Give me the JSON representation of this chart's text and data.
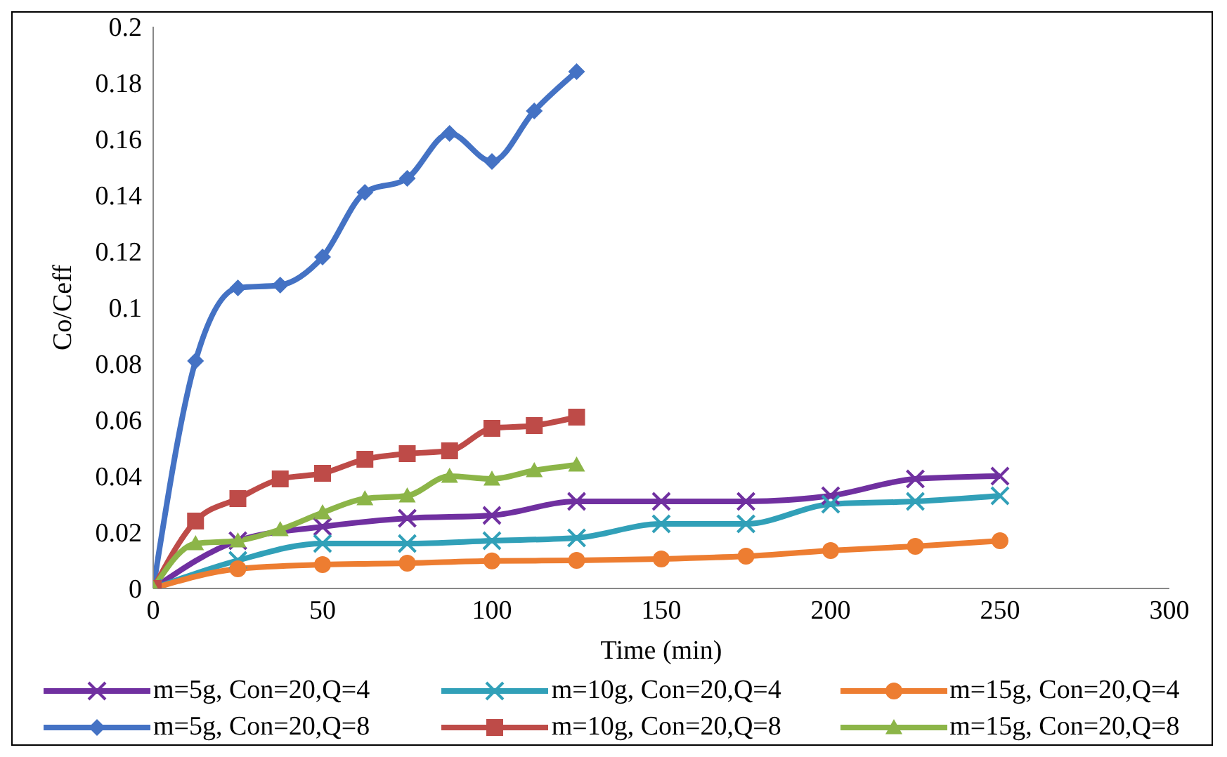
{
  "chart_data": {
    "type": "line",
    "xlabel": "Time (min)",
    "ylabel": "Co/Ceff",
    "xlim": [
      0,
      300
    ],
    "xticks": [
      0,
      50,
      100,
      150,
      200,
      250,
      300
    ],
    "ylim": [
      0,
      0.2
    ],
    "yticks": [
      0,
      0.02,
      0.04,
      0.06,
      0.08,
      0.1,
      0.12,
      0.14,
      0.16,
      0.18,
      0.2
    ],
    "grid": false,
    "legend": "bottom",
    "line_style": "solid",
    "series": [
      {
        "name": "m=5g, Con=20,Q=4",
        "color": "#7030a0",
        "marker": "cross",
        "x": [
          0,
          25,
          50,
          75,
          100,
          125,
          150,
          175,
          200,
          225,
          250
        ],
        "values": [
          0,
          0.017,
          0.022,
          0.025,
          0.026,
          0.031,
          0.031,
          0.031,
          0.033,
          0.039,
          0.04
        ]
      },
      {
        "name": "m=10g, Con=20,Q=4",
        "color": "#31a0b8",
        "marker": "cross",
        "x": [
          0,
          25,
          50,
          75,
          100,
          125,
          150,
          175,
          200,
          225,
          250
        ],
        "values": [
          0,
          0.01,
          0.016,
          0.016,
          0.017,
          0.018,
          0.023,
          0.023,
          0.03,
          0.031,
          0.033
        ]
      },
      {
        "name": "m=15g, Con=20,Q=4",
        "color": "#ed7d31",
        "marker": "circle",
        "x": [
          0,
          25,
          50,
          75,
          100,
          125,
          150,
          175,
          200,
          225,
          250
        ],
        "values": [
          0,
          0.007,
          0.0085,
          0.009,
          0.0098,
          0.01,
          0.0105,
          0.0115,
          0.0135,
          0.015,
          0.017
        ]
      },
      {
        "name": "m=5g, Con=20,Q=8",
        "color": "#4472c4",
        "marker": "diamond",
        "x": [
          0,
          12.5,
          25,
          37.5,
          50,
          62.5,
          75,
          87.5,
          100,
          112.5,
          125
        ],
        "values": [
          0,
          0.081,
          0.107,
          0.108,
          0.118,
          0.141,
          0.146,
          0.162,
          0.152,
          0.17,
          0.184
        ]
      },
      {
        "name": "m=10g, Con=20,Q=8",
        "color": "#be4b48",
        "marker": "square",
        "x": [
          0,
          12.5,
          25,
          37.5,
          50,
          62.5,
          75,
          87.5,
          100,
          112.5,
          125
        ],
        "values": [
          0,
          0.024,
          0.032,
          0.039,
          0.041,
          0.046,
          0.048,
          0.049,
          0.057,
          0.058,
          0.061
        ]
      },
      {
        "name": "m=15g, Con=20,Q=8",
        "color": "#8cb548",
        "marker": "triangle",
        "x": [
          0,
          12.5,
          25,
          37.5,
          50,
          62.5,
          75,
          87.5,
          100,
          112.5,
          125
        ],
        "values": [
          0,
          0.016,
          0.017,
          0.021,
          0.027,
          0.032,
          0.033,
          0.04,
          0.039,
          0.042,
          0.044
        ]
      }
    ]
  }
}
